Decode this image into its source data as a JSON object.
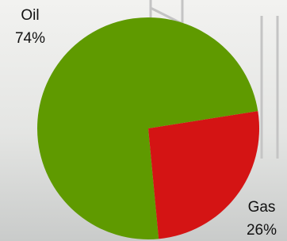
{
  "chart_data": {
    "type": "pie",
    "categories": [
      "Oil",
      "Gas"
    ],
    "values": [
      74,
      26
    ],
    "value_labels": [
      "74%",
      "26%"
    ],
    "colors": [
      "#5f9a00",
      "#d41414"
    ]
  }
}
